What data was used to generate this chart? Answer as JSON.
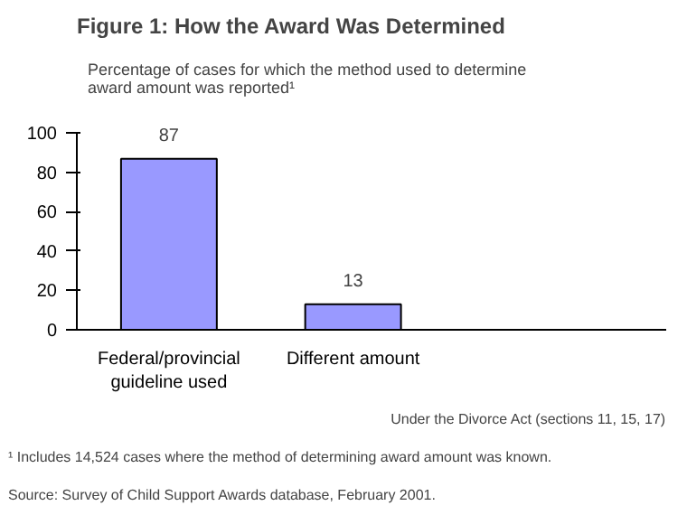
{
  "chart_data": {
    "type": "bar",
    "title": "Figure 1: How the Award Was Determined",
    "subtitle": "Percentage of cases for which the method used to determine award amount was reported¹",
    "categories": [
      "Federal/provincial guideline used",
      "Different amount"
    ],
    "values": [
      87,
      13
    ],
    "color": "#9999ff",
    "data_labels": true,
    "ylim": [
      0,
      100
    ],
    "yticks": [
      0,
      20,
      40,
      60,
      80,
      100
    ],
    "grid": false,
    "annotations": [
      "Under the Divorce Act (sections 11, 15, 17)",
      "¹ Includes 14,524 cases where the method of determining award amount was known.",
      "Source:  Survey of Child Support Awards database, February 2001."
    ]
  }
}
